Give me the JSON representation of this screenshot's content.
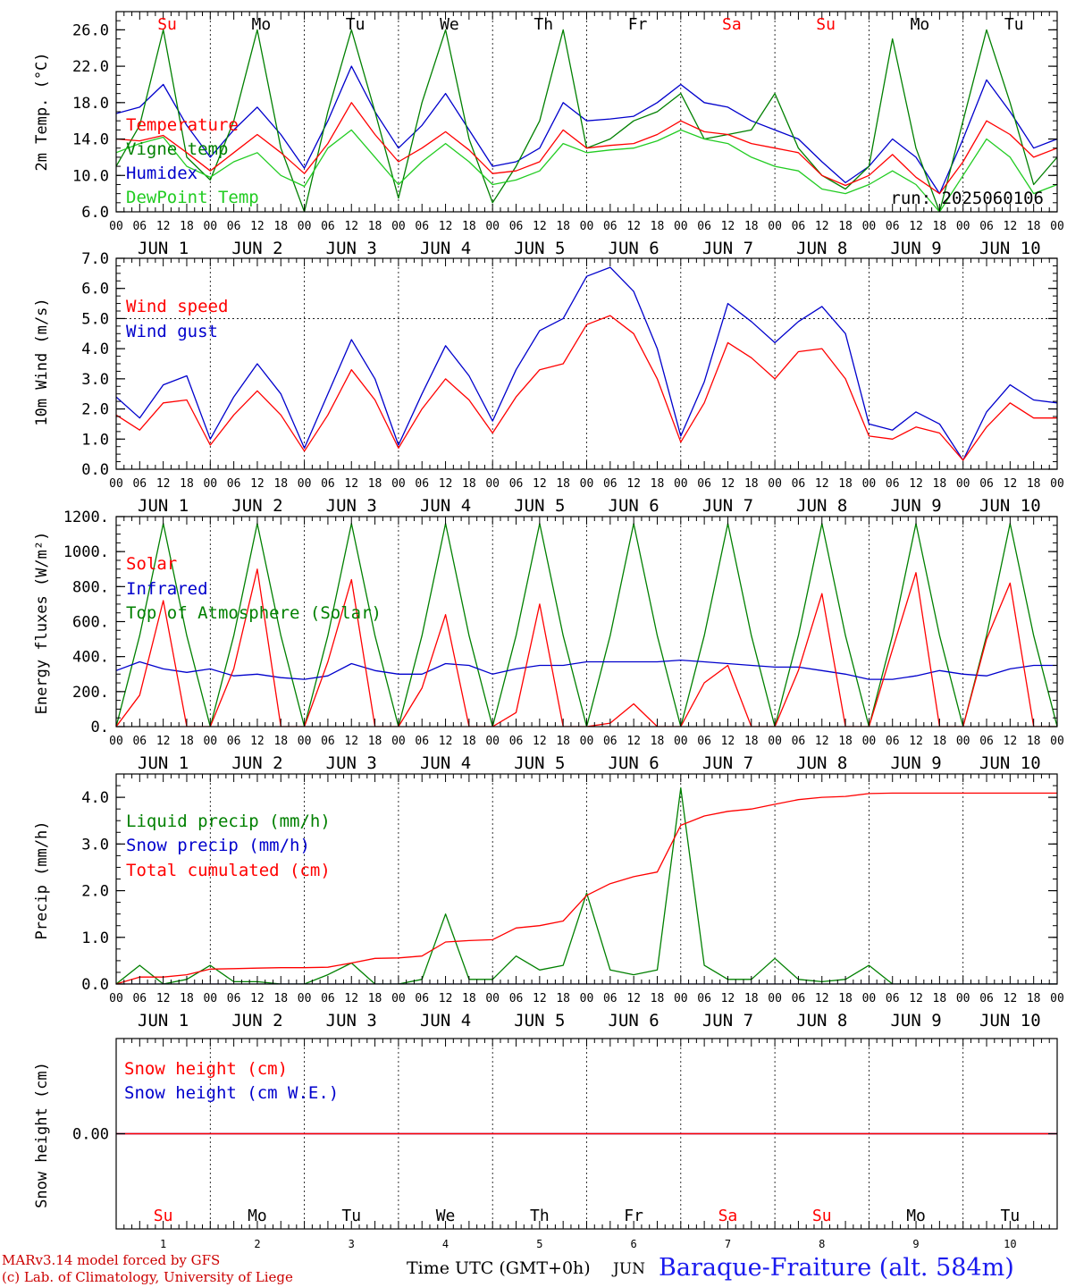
{
  "colors": {
    "temperature": "#ff0000",
    "vigne": "#008000",
    "humidex": "#0000cc",
    "dewpoint": "#22cc22",
    "weekend": "#ff0000",
    "weekday": "#000000",
    "footer_red": "#cc0000",
    "station_blue": "#1a1aee"
  },
  "days": {
    "labels": [
      "Su",
      "Mo",
      "Tu",
      "We",
      "Th",
      "Fr",
      "Sa",
      "Su",
      "Mo",
      "Tu"
    ],
    "weekend": [
      true,
      false,
      false,
      false,
      false,
      false,
      true,
      true,
      false,
      false
    ],
    "jun_labels": [
      "JUN 1",
      "JUN 2",
      "JUN 3",
      "JUN 4",
      "JUN 5",
      "JUN 6",
      "JUN 7",
      "JUN 8",
      "JUN 9",
      "JUN 10"
    ],
    "numbers": [
      "1",
      "2",
      "3",
      "4",
      "5",
      "6",
      "7",
      "8",
      "9",
      "10"
    ],
    "hour_labels": [
      "00",
      "06",
      "12",
      "18"
    ],
    "final_hour": "00"
  },
  "panels": {
    "temp": {
      "ylabel": "2m Temp. (°C)",
      "yticks": [
        "6.0",
        "10.0",
        "14.0",
        "18.0",
        "22.0",
        "26.0"
      ],
      "legend": [
        "Temperature",
        "Vigne temp",
        "Humidex",
        "DewPoint Temp"
      ],
      "run": "run: 2025060106"
    },
    "wind": {
      "ylabel": "10m Wind (m/s)",
      "yticks": [
        "0.0",
        "1.0",
        "2.0",
        "3.0",
        "4.0",
        "5.0",
        "6.0",
        "7.0"
      ],
      "legend": [
        "Wind speed",
        "Wind gust"
      ]
    },
    "energy": {
      "ylabel": "Energy fluxes (W/m²)",
      "yticks": [
        "0.",
        "200.",
        "400.",
        "600.",
        "800.",
        "1000.",
        "1200."
      ],
      "legend": [
        "Solar",
        "Infrared",
        "Top of Atmosphere (Solar)"
      ]
    },
    "precip": {
      "ylabel": "Precip (mm/h)",
      "yticks": [
        "0.0",
        "1.0",
        "2.0",
        "3.0",
        "4.0"
      ],
      "legend": [
        "Liquid precip (mm/h)",
        "Snow precip (mm/h)",
        "Total cumulated (cm)"
      ]
    },
    "snow": {
      "ylabel": "Snow height (cm)",
      "yticks": [
        "0.00"
      ],
      "legend": [
        "Snow height (cm)",
        "Snow height (cm W.E.)"
      ]
    }
  },
  "footer": {
    "line1": "MARv3.14 model forced by GFS",
    "line2": "(c) Lab. of Climatology, University of Liege",
    "xlabel": "Time UTC (GMT+0h)",
    "month": "JUN",
    "station": "Baraque-Fraiture (alt. 584m)"
  },
  "chart_data": [
    {
      "type": "line",
      "ylabel": "2m Temp. (°C)",
      "ylim": [
        6,
        28
      ],
      "x_unit": "hours since 2025-06-01 00 UTC",
      "x": [
        0,
        6,
        12,
        18,
        24,
        30,
        36,
        42,
        48,
        54,
        60,
        66,
        72,
        78,
        84,
        90,
        96,
        102,
        108,
        114,
        120,
        126,
        132,
        138,
        144,
        150,
        156,
        162,
        168,
        174,
        180,
        186,
        192,
        198,
        204,
        210,
        216,
        222,
        228,
        234,
        240
      ],
      "series": [
        {
          "name": "Temperature",
          "values": [
            14.0,
            13.8,
            14.4,
            12.5,
            10.5,
            12.5,
            14.5,
            12.5,
            10.2,
            13.5,
            18.0,
            14.5,
            11.5,
            13.0,
            14.8,
            12.8,
            10.2,
            10.5,
            11.5,
            15.0,
            13.0,
            13.3,
            13.5,
            14.5,
            16.0,
            14.8,
            14.5,
            13.5,
            13.0,
            12.5,
            10.0,
            8.9,
            10.0,
            12.3,
            9.8,
            8.0,
            11.5,
            16.0,
            14.5,
            12.0,
            13.0
          ]
        },
        {
          "name": "Vigne temp",
          "values": [
            11.0,
            15.5,
            26.0,
            12.0,
            9.5,
            16.0,
            26.0,
            13.0,
            6.0,
            17.0,
            26.0,
            17.0,
            7.5,
            18.0,
            26.0,
            14.0,
            7.0,
            11.0,
            16.0,
            26.0,
            13.0,
            14.0,
            16.0,
            17.0,
            19.0,
            14.0,
            14.5,
            15.0,
            19.0,
            13.0,
            10.0,
            8.5,
            11.0,
            25.0,
            13.0,
            6.0,
            16.0,
            26.0,
            18.0,
            9.0,
            12.0
          ]
        },
        {
          "name": "Humidex",
          "values": [
            16.8,
            17.5,
            20.0,
            15.5,
            12.0,
            15.0,
            17.5,
            14.5,
            10.8,
            16.0,
            22.0,
            17.0,
            13.0,
            15.5,
            19.0,
            15.0,
            11.0,
            11.5,
            13.0,
            18.0,
            16.0,
            16.2,
            16.5,
            18.0,
            20.0,
            18.0,
            17.5,
            16.0,
            15.0,
            14.0,
            11.5,
            9.2,
            11.0,
            14.0,
            12.0,
            8.0,
            14.0,
            20.5,
            17.0,
            13.0,
            14.0
          ]
        },
        {
          "name": "DewPoint Temp",
          "values": [
            12.5,
            13.5,
            14.2,
            11.0,
            9.8,
            11.5,
            12.5,
            10.0,
            8.8,
            13.0,
            15.0,
            12.0,
            9.0,
            11.5,
            13.5,
            11.5,
            9.0,
            9.5,
            10.5,
            13.5,
            12.5,
            12.8,
            13.0,
            13.8,
            15.0,
            14.0,
            13.5,
            12.0,
            11.0,
            10.5,
            8.5,
            8.0,
            9.0,
            10.5,
            9.0,
            6.0,
            10.0,
            14.0,
            12.0,
            8.0,
            9.0
          ]
        }
      ],
      "annotation": "run: 2025060106"
    },
    {
      "type": "line",
      "ylabel": "10m Wind (m/s)",
      "ylim": [
        0,
        7
      ],
      "reference_line": 5.0,
      "x_unit": "hours since 2025-06-01 00 UTC",
      "x": [
        0,
        6,
        12,
        18,
        24,
        30,
        36,
        42,
        48,
        54,
        60,
        66,
        72,
        78,
        84,
        90,
        96,
        102,
        108,
        114,
        120,
        126,
        132,
        138,
        144,
        150,
        156,
        162,
        168,
        174,
        180,
        186,
        192,
        198,
        204,
        210,
        216,
        222,
        228,
        234,
        240
      ],
      "series": [
        {
          "name": "Wind speed",
          "values": [
            1.8,
            1.3,
            2.2,
            2.3,
            0.8,
            1.8,
            2.6,
            1.8,
            0.6,
            1.8,
            3.3,
            2.3,
            0.7,
            2.0,
            3.0,
            2.3,
            1.2,
            2.4,
            3.3,
            3.5,
            4.8,
            5.1,
            4.5,
            3.0,
            0.9,
            2.2,
            4.2,
            3.7,
            3.0,
            3.9,
            4.0,
            3.0,
            1.1,
            1.0,
            1.4,
            1.2,
            0.3,
            1.4,
            2.2,
            1.7,
            1.7
          ]
        },
        {
          "name": "Wind gust",
          "values": [
            2.4,
            1.7,
            2.8,
            3.1,
            1.0,
            2.4,
            3.5,
            2.5,
            0.7,
            2.5,
            4.3,
            3.0,
            0.8,
            2.5,
            4.1,
            3.1,
            1.6,
            3.3,
            4.6,
            5.0,
            6.4,
            6.7,
            5.9,
            4.0,
            1.1,
            2.9,
            5.5,
            4.9,
            4.2,
            4.9,
            5.4,
            4.5,
            1.5,
            1.3,
            1.9,
            1.5,
            0.3,
            1.9,
            2.8,
            2.3,
            2.2
          ]
        }
      ]
    },
    {
      "type": "line",
      "ylabel": "Energy fluxes (W/m²)",
      "ylim": [
        0,
        1200
      ],
      "x_unit": "hours since 2025-06-01 00 UTC",
      "x": [
        0,
        6,
        12,
        18,
        24,
        30,
        36,
        42,
        48,
        54,
        60,
        66,
        72,
        78,
        84,
        90,
        96,
        102,
        108,
        114,
        120,
        126,
        132,
        138,
        144,
        150,
        156,
        162,
        168,
        174,
        180,
        186,
        192,
        198,
        204,
        210,
        216,
        222,
        228,
        234,
        240
      ],
      "series": [
        {
          "name": "Solar",
          "values": [
            0,
            180,
            720,
            0,
            0,
            330,
            900,
            0,
            0,
            370,
            840,
            0,
            0,
            220,
            640,
            0,
            0,
            80,
            700,
            0,
            0,
            20,
            130,
            0,
            0,
            250,
            350,
            0,
            0,
            320,
            760,
            0,
            0,
            440,
            880,
            0,
            0,
            500,
            820,
            0,
            0
          ]
        },
        {
          "name": "Infrared",
          "values": [
            320,
            370,
            330,
            310,
            330,
            290,
            300,
            280,
            270,
            290,
            360,
            320,
            300,
            300,
            360,
            350,
            300,
            330,
            350,
            350,
            370,
            370,
            370,
            370,
            380,
            370,
            360,
            350,
            340,
            340,
            320,
            300,
            270,
            270,
            290,
            320,
            300,
            290,
            330,
            350,
            350
          ]
        },
        {
          "name": "Top of Atmosphere (Solar)",
          "values": [
            0,
            520,
            1160,
            520,
            0,
            520,
            1160,
            520,
            0,
            520,
            1160,
            520,
            0,
            520,
            1160,
            520,
            0,
            520,
            1160,
            520,
            0,
            520,
            1160,
            520,
            0,
            520,
            1160,
            520,
            0,
            520,
            1160,
            520,
            0,
            520,
            1160,
            520,
            0,
            520,
            1160,
            520,
            0
          ]
        }
      ]
    },
    {
      "type": "line",
      "ylabel": "Precip (mm/h)",
      "ylim": [
        0,
        4.5
      ],
      "x_unit": "hours since 2025-06-01 00 UTC",
      "x": [
        0,
        6,
        12,
        18,
        24,
        30,
        36,
        42,
        48,
        54,
        60,
        66,
        72,
        78,
        84,
        90,
        96,
        102,
        108,
        114,
        120,
        126,
        132,
        138,
        144,
        150,
        156,
        162,
        168,
        174,
        180,
        186,
        192,
        198,
        204,
        210,
        216,
        222,
        228,
        234,
        240
      ],
      "series": [
        {
          "name": "Liquid precip (mm/h)",
          "values": [
            0.0,
            0.4,
            0.0,
            0.1,
            0.4,
            0.05,
            0.05,
            0.0,
            0.0,
            0.2,
            0.45,
            0.0,
            0.0,
            0.1,
            1.5,
            0.1,
            0.1,
            0.6,
            0.3,
            0.4,
            1.95,
            0.3,
            0.2,
            0.3,
            4.2,
            0.4,
            0.1,
            0.1,
            0.55,
            0.1,
            0.05,
            0.1,
            0.4,
            0.0,
            0.0,
            0.0,
            0.0,
            0.0,
            0.0,
            0.0,
            0.0
          ]
        },
        {
          "name": "Snow precip (mm/h)",
          "values": [
            0,
            0,
            0,
            0,
            0,
            0,
            0,
            0,
            0,
            0,
            0,
            0,
            0,
            0,
            0,
            0,
            0,
            0,
            0,
            0,
            0,
            0,
            0,
            0,
            0,
            0,
            0,
            0,
            0,
            0,
            0,
            0,
            0,
            0,
            0,
            0,
            0,
            0,
            0,
            0,
            0
          ]
        },
        {
          "name": "Total cumulated (cm)",
          "values": [
            0.0,
            0.15,
            0.15,
            0.2,
            0.32,
            0.33,
            0.34,
            0.35,
            0.35,
            0.36,
            0.45,
            0.55,
            0.56,
            0.6,
            0.9,
            0.93,
            0.95,
            1.2,
            1.25,
            1.35,
            1.9,
            2.15,
            2.3,
            2.4,
            3.4,
            3.6,
            3.7,
            3.75,
            3.85,
            3.95,
            4.0,
            4.02,
            4.08,
            4.09,
            4.09,
            4.09,
            4.09,
            4.09,
            4.09,
            4.09,
            4.09
          ]
        }
      ]
    },
    {
      "type": "line",
      "ylabel": "Snow height (cm)",
      "x_unit": "hours since 2025-06-01 00 UTC",
      "x": [
        0,
        240
      ],
      "series": [
        {
          "name": "Snow height (cm)",
          "values": [
            0.0,
            0.0
          ]
        },
        {
          "name": "Snow height (cm W.E.)",
          "values": [
            0.0,
            0.0
          ]
        }
      ]
    }
  ]
}
